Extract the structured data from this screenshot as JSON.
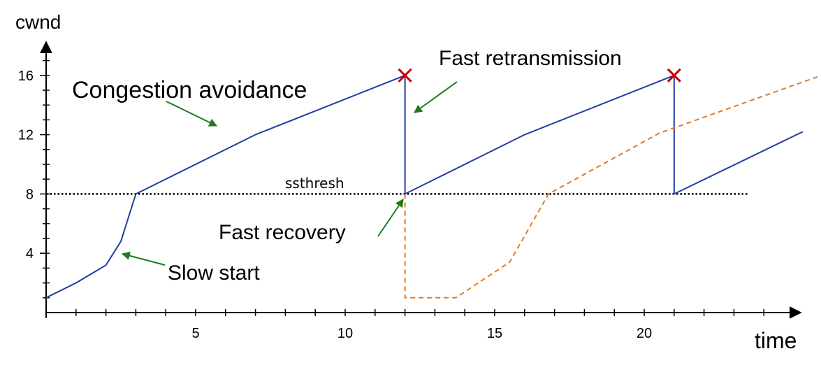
{
  "chart_data": {
    "type": "line",
    "title": "",
    "xlabel": "time",
    "ylabel": "cwnd",
    "xlim": [
      0,
      25
    ],
    "ylim": [
      0,
      18
    ],
    "x_ticks": [
      5,
      10,
      15,
      20
    ],
    "y_ticks": [
      4,
      8,
      12,
      16
    ],
    "grid": false,
    "series": [
      {
        "color": "#1f3ea6",
        "style": "solid",
        "points": [
          [
            0,
            1
          ],
          [
            1,
            2
          ],
          [
            2,
            3.2
          ],
          [
            2.5,
            4.8
          ],
          [
            3,
            8
          ],
          [
            7,
            12
          ],
          [
            12,
            16
          ],
          [
            12,
            8
          ],
          [
            16,
            12
          ],
          [
            21,
            16
          ],
          [
            21,
            8
          ],
          [
            25.3,
            12.2
          ]
        ]
      },
      {
        "color": "#e07b22",
        "style": "dashed",
        "points": [
          [
            12,
            8
          ],
          [
            12,
            1
          ],
          [
            13.7,
            1
          ],
          [
            15.5,
            3.4
          ],
          [
            16.8,
            8
          ],
          [
            20.5,
            12.1
          ],
          [
            26.2,
            16.2
          ]
        ]
      }
    ],
    "reference_lines": [
      {
        "axis": "y",
        "value": 8,
        "style": "dotted",
        "label": "ssthresh",
        "x_start": 0,
        "x_end": 23.5
      }
    ],
    "loss_markers": [
      {
        "x": 12,
        "y": 16,
        "symbol": "x",
        "color": "#c00000"
      },
      {
        "x": 21,
        "y": 16,
        "symbol": "x",
        "color": "#c00000"
      }
    ],
    "annotations": [
      {
        "text": "Congestion avoidance",
        "arrow_color": "#1e7a1e"
      },
      {
        "text": "Fast retransmission",
        "arrow_color": "#1e7a1e"
      },
      {
        "text": "Fast recovery",
        "arrow_color": "#1e7a1e"
      },
      {
        "text": "Slow start",
        "arrow_color": "#1e7a1e"
      }
    ]
  }
}
